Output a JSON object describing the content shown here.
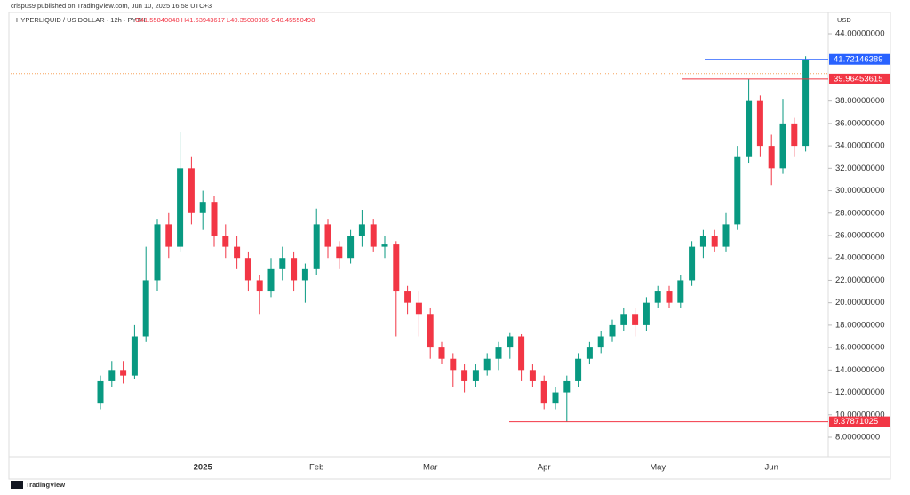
{
  "publisher": "crispus9 published on TradingView.com, Jun 10, 2025 16:58 UTC+3",
  "footer": {
    "brand": "TradingView"
  },
  "chart_data": {
    "type": "candlestick",
    "title": "HYPERLIQUID / US DOLLAR · 12h · PYTH",
    "subtitle": "O41.55840048 H41.63943617 L40.35030985 C40.45550498",
    "y_axis_label": "USD",
    "up_color": "#089981",
    "down_color": "#f23645",
    "categories": [
      null,
      null,
      null,
      null,
      null,
      null,
      null,
      null,
      null,
      "2025",
      null,
      null,
      null,
      null,
      null,
      null,
      null,
      null,
      null,
      "Feb",
      null,
      null,
      null,
      null,
      null,
      null,
      null,
      null,
      null,
      "Mar",
      null,
      null,
      null,
      null,
      null,
      null,
      null,
      null,
      null,
      "Apr",
      null,
      null,
      null,
      null,
      null,
      null,
      null,
      null,
      null,
      "May",
      null,
      null,
      null,
      null,
      null,
      null,
      null,
      null,
      null,
      "Jun",
      null,
      null,
      null
    ],
    "open": [
      11,
      13,
      14,
      13.5,
      17,
      22,
      27,
      25,
      32,
      28,
      29,
      26,
      25,
      24,
      22,
      21,
      23,
      24,
      22,
      23,
      27,
      25,
      24,
      26,
      27,
      25,
      25.2,
      21,
      20,
      19,
      16,
      15,
      14,
      13,
      14,
      15,
      16,
      17,
      14,
      13,
      11,
      12,
      13,
      15,
      16,
      17,
      18,
      19,
      18,
      20,
      21,
      20,
      22,
      25,
      26,
      25,
      27,
      33,
      38,
      34,
      32,
      36,
      34
    ],
    "high": [
      13.5,
      14.8,
      14.8,
      18,
      25,
      27.5,
      28,
      35.2,
      33,
      30,
      29.5,
      27,
      26,
      24.5,
      22.5,
      24,
      25,
      24.5,
      23.5,
      28.4,
      27.5,
      25.5,
      26.5,
      28.3,
      27.5,
      26,
      25.5,
      21.5,
      21,
      19.5,
      16.5,
      15.5,
      14.5,
      14.5,
      15.5,
      16.5,
      17.3,
      17.2,
      14.5,
      13.5,
      12.5,
      13.5,
      15.5,
      16.5,
      17.5,
      18.5,
      19.5,
      19.5,
      20.5,
      21.5,
      21.5,
      22.5,
      25.5,
      26.5,
      26.5,
      28,
      34,
      39.96453615,
      38.5,
      35,
      38.2,
      36.5,
      42
    ],
    "low": [
      10.5,
      12.5,
      12.8,
      13.2,
      16.5,
      21,
      24,
      24.5,
      27,
      26.5,
      25,
      24,
      23,
      21,
      19,
      20.5,
      22,
      21,
      20,
      22.5,
      24,
      23,
      23.5,
      25,
      24.5,
      24,
      17,
      19,
      17,
      15,
      14.5,
      12.5,
      12,
      12.5,
      13.5,
      14,
      15,
      13,
      12.5,
      10.5,
      10.5,
      9.37871025,
      12.5,
      14.5,
      15.5,
      16.5,
      17.5,
      17,
      17.5,
      19.5,
      19.5,
      19.5,
      21.5,
      24,
      24.5,
      24.5,
      26.5,
      32.5,
      33,
      30.5,
      31.5,
      33,
      33.5
    ],
    "close": [
      13,
      14,
      13.5,
      17,
      22,
      27,
      25,
      32,
      28,
      29,
      26,
      25,
      24,
      22,
      21,
      23,
      24,
      22,
      23,
      27,
      25,
      24,
      26,
      27,
      25,
      25.2,
      21,
      20,
      19,
      16,
      15,
      14,
      13,
      14,
      15,
      16,
      17,
      14,
      13,
      11,
      12,
      13,
      15,
      16,
      17,
      18,
      19,
      18,
      20,
      21,
      20,
      22,
      25,
      26,
      25,
      27,
      33,
      38,
      34,
      32,
      36,
      34,
      41.72146389
    ],
    "ylim": [
      8,
      44
    ],
    "yticks": [
      {
        "value": 44,
        "label": "44.00000000"
      },
      {
        "value": 38,
        "label": "38.00000000"
      },
      {
        "value": 36,
        "label": "36.00000000"
      },
      {
        "value": 34,
        "label": "34.00000000"
      },
      {
        "value": 32,
        "label": "32.00000000"
      },
      {
        "value": 30,
        "label": "30.00000000"
      },
      {
        "value": 28,
        "label": "28.00000000"
      },
      {
        "value": 26,
        "label": "26.00000000"
      },
      {
        "value": 24,
        "label": "24.00000000"
      },
      {
        "value": 22,
        "label": "22.00000000"
      },
      {
        "value": 20,
        "label": "20.00000000"
      },
      {
        "value": 18,
        "label": "18.00000000"
      },
      {
        "value": 16,
        "label": "16.00000000"
      },
      {
        "value": 14,
        "label": "14.00000000"
      },
      {
        "value": 12,
        "label": "12.00000000"
      },
      {
        "value": 10,
        "label": "10.00000000"
      },
      {
        "value": 8,
        "label": "8.00000000"
      }
    ],
    "price_levels": [
      {
        "value": 41.72146389,
        "color": "#2962ff"
      },
      {
        "value": 39.96453615,
        "color": "#f23645"
      },
      {
        "value": 9.37871025,
        "color": "#f23645"
      }
    ],
    "last_price_line": {
      "value": 40.45550498,
      "color": "#f7a35c"
    }
  }
}
